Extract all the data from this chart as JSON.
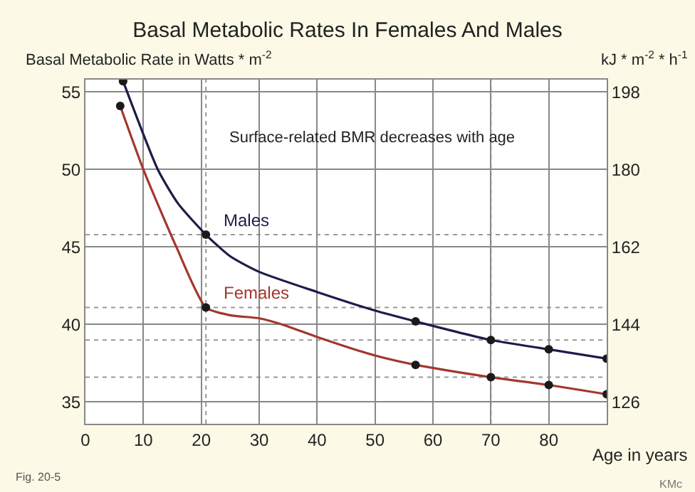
{
  "chart_data": {
    "type": "line",
    "title": "Basal Metabolic Rates In Females And Males",
    "ylabel": "Basal Metabolic Rate in Watts * m$^{-2}$",
    "y2label": "kJ * m$^{-2}$ * h$^{-1}$",
    "xlabel": "Age in years",
    "annotations": [
      "Surface-related BMR decreases with age",
      "Fig. 20-5",
      "KMc"
    ],
    "series": [
      {
        "name": "Males",
        "color": "#1c1c4a",
        "marker": "none",
        "x": [
          6.5,
          12.5,
          16,
          20.8,
          25,
          30,
          40,
          50,
          57,
          70,
          80,
          90
        ],
        "values": [
          55.7,
          50,
          47.8,
          45.8,
          44.4,
          43.4,
          42.1,
          40.9,
          40.2,
          39.0,
          38.4,
          37.8
        ]
      },
      {
        "name": "Females",
        "color": "#a3372c",
        "marker": "none",
        "x": [
          6,
          10,
          15.7,
          20.8,
          25,
          30,
          34,
          40,
          50,
          57,
          70,
          80,
          90
        ],
        "values": [
          54.1,
          50,
          45,
          41.1,
          40.6,
          40.4,
          40.0,
          39.2,
          38.0,
          37.4,
          36.6,
          36.1,
          35.5
        ]
      },
      {
        "type": "scatter",
        "color": "#1a1a1a",
        "marker": "circle",
        "x": [
          6.5,
          20.8,
          57,
          70,
          80,
          90
        ],
        "values": [
          55.7,
          45.8,
          40.2,
          39.0,
          38.4,
          37.8
        ]
      },
      {
        "type": "scatter",
        "color": "#1a1a1a",
        "marker": "circle",
        "x": [
          6,
          20.8,
          57,
          70,
          80,
          90
        ],
        "values": [
          54.1,
          41.1,
          37.4,
          36.6,
          36.1,
          35.5
        ]
      }
    ],
    "xlim": [
      0,
      90
    ],
    "xticks": [
      0,
      10,
      20,
      30,
      40,
      50,
      60,
      70,
      80
    ],
    "ylim": [
      33.6,
      55.8
    ],
    "yticks": [
      35,
      40,
      45,
      50,
      55
    ],
    "y2lim": [
      121,
      200.9
    ],
    "y2ticks": [
      126,
      144,
      162,
      180,
      198
    ],
    "ref_lines": [
      {
        "axis": "x",
        "value": 20.8,
        "color": "#999999",
        "line_style": "dotted"
      },
      {
        "axis": "x",
        "value": 70,
        "color": "#999999",
        "line_style": "dotted"
      },
      {
        "axis": "y",
        "value": 45.8,
        "color": "#999999",
        "line_style": "dotted"
      },
      {
        "axis": "y",
        "value": 41.1,
        "color": "#999999",
        "line_style": "dotted"
      },
      {
        "axis": "y",
        "value": 39.0,
        "color": "#999999",
        "line_style": "dotted"
      },
      {
        "axis": "y",
        "value": 36.6,
        "color": "#999999",
        "line_style": "dotted"
      }
    ],
    "grid": true,
    "legend": false
  }
}
